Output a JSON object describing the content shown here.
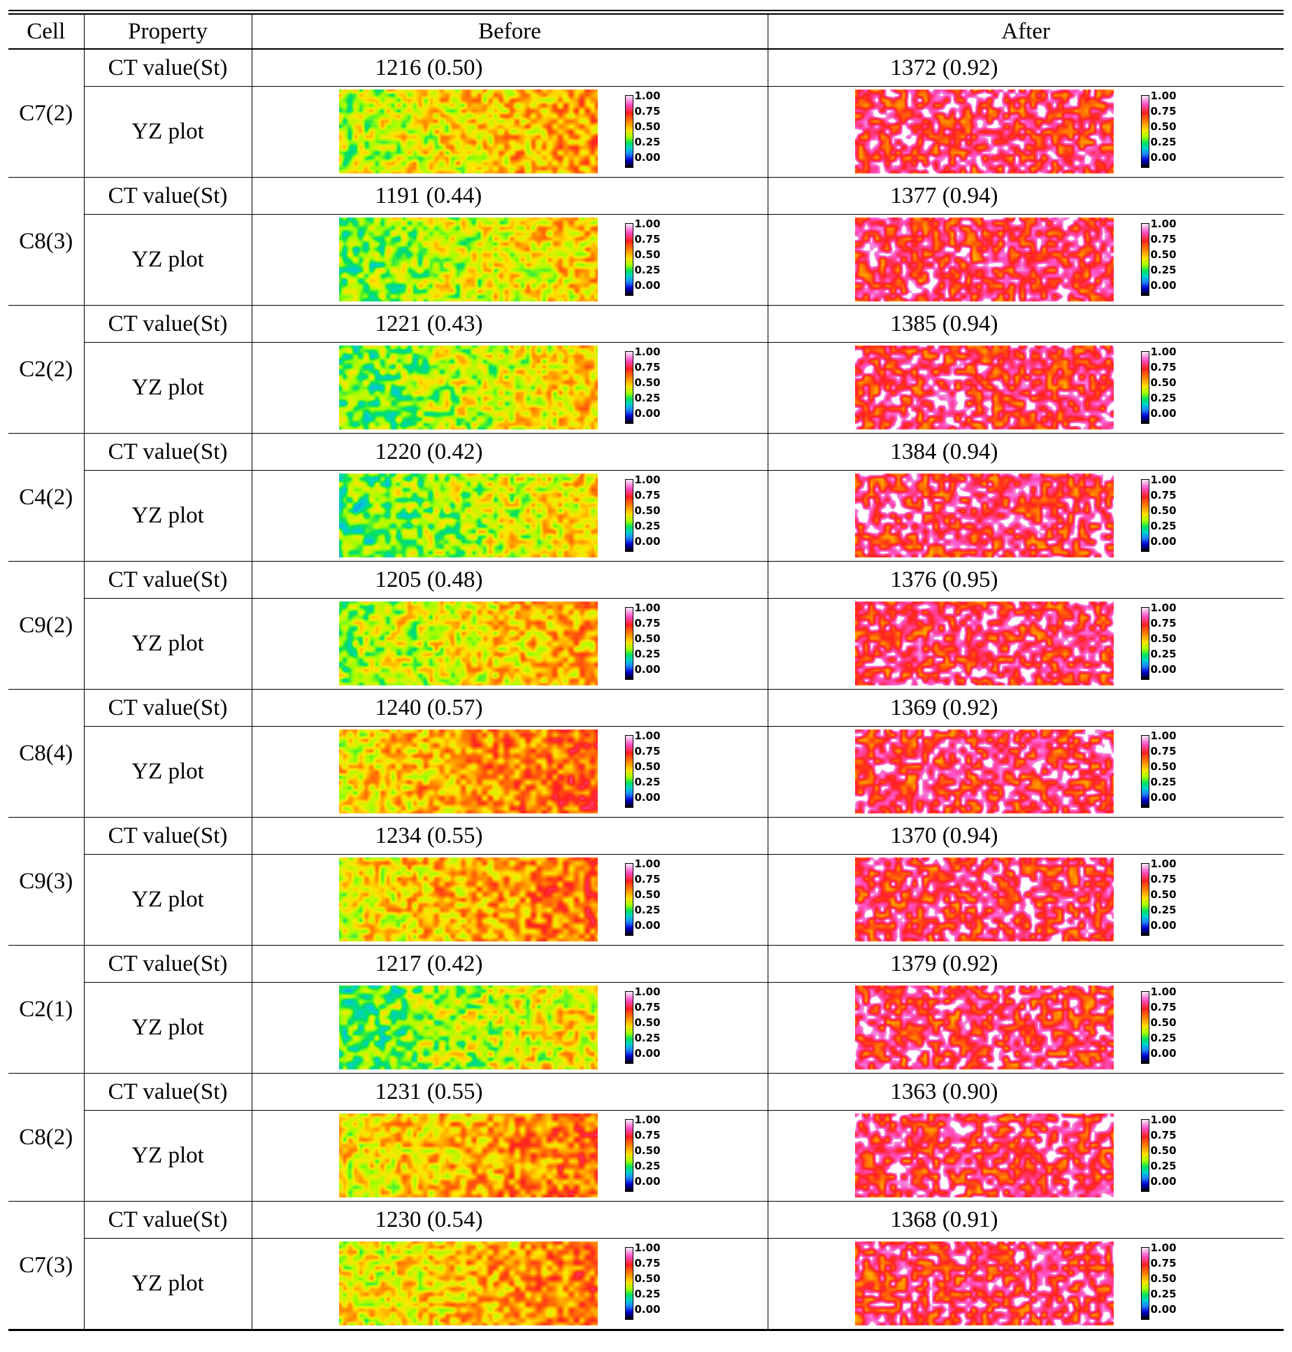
{
  "table": {
    "headers": {
      "cell": "Cell",
      "property": "Property",
      "before": "Before",
      "after": "After"
    },
    "prop_ct": "CT  value(St)",
    "prop_yz": "YZ  plot",
    "colorbar_ticks": [
      "1.00",
      "0.75",
      "0.50",
      "0.25",
      "0.00"
    ],
    "rows": [
      {
        "cell": "C7(2)",
        "before_ct": "1216  (0.50)",
        "after_ct": "1372  (0.92)",
        "before_level": 0.5,
        "after_level": 0.92
      },
      {
        "cell": "C8(3)",
        "before_ct": "1191  (0.44)",
        "after_ct": "1377  (0.94)",
        "before_level": 0.44,
        "after_level": 0.94
      },
      {
        "cell": "C2(2)",
        "before_ct": "1221  (0.43)",
        "after_ct": "1385  (0.94)",
        "before_level": 0.43,
        "after_level": 0.94
      },
      {
        "cell": "C4(2)",
        "before_ct": "1220  (0.42)",
        "after_ct": "1384  (0.94)",
        "before_level": 0.42,
        "after_level": 0.94
      },
      {
        "cell": "C9(2)",
        "before_ct": "1205  (0.48)",
        "after_ct": "1376  (0.95)",
        "before_level": 0.48,
        "after_level": 0.95
      },
      {
        "cell": "C8(4)",
        "before_ct": "1240  (0.57)",
        "after_ct": "1369  (0.92)",
        "before_level": 0.57,
        "after_level": 0.92
      },
      {
        "cell": "C9(3)",
        "before_ct": "1234  (0.55)",
        "after_ct": "1370  (0.94)",
        "before_level": 0.55,
        "after_level": 0.94
      },
      {
        "cell": "C2(1)",
        "before_ct": "1217  (0.42)",
        "after_ct": "1379  (0.92)",
        "before_level": 0.42,
        "after_level": 0.92
      },
      {
        "cell": "C8(2)",
        "before_ct": "1231  (0.55)",
        "after_ct": "1363  (0.90)",
        "before_level": 0.55,
        "after_level": 0.9
      },
      {
        "cell": "C7(3)",
        "before_ct": "1230  (0.54)",
        "after_ct": "1368  (0.91)",
        "before_level": 0.54,
        "after_level": 0.91
      }
    ]
  }
}
